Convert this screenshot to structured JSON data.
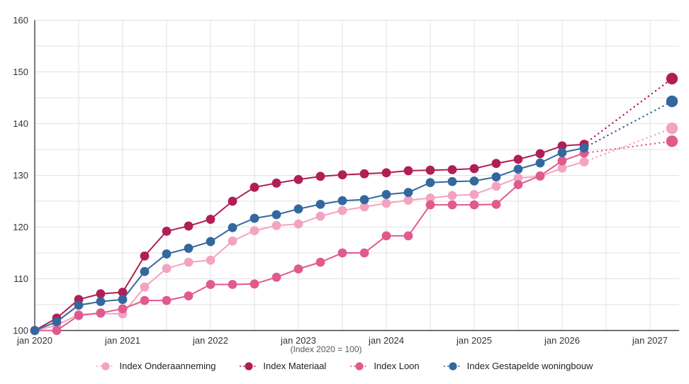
{
  "chart_data": {
    "type": "line",
    "title": "",
    "note": "(Index 2020 = 100)",
    "x_axis": {
      "tick_labels": [
        "jan 2020",
        "jan 2021",
        "jan 2022",
        "jan 2023",
        "jan 2024",
        "jan 2025",
        "jan 2026",
        "jan 2027"
      ],
      "points_per_year": 4,
      "quarters_total": 29,
      "solid_points": 26,
      "grid_every_quarters": 2
    },
    "y_axis": {
      "tick_labels": [
        "100",
        "110",
        "120",
        "130",
        "140",
        "150",
        "160"
      ],
      "min": 100,
      "max": 160,
      "label_step": 10,
      "grid_step": 5
    },
    "grid": true,
    "legend_position": "bottom",
    "projection_style": "dotted",
    "series": [
      {
        "name": "Index Onderaanneming",
        "color": "#F3A3C0",
        "values": [
          100,
          101.0,
          103.1,
          103.3,
          103.2,
          108.4,
          112.0,
          113.2,
          113.6,
          117.3,
          119.3,
          120.3,
          120.6,
          122.1,
          123.2,
          123.9,
          124.6,
          125.2,
          125.6,
          126.1,
          126.3,
          127.9,
          129.5,
          129.8,
          131.4,
          132.6
        ],
        "projection_end_value": 139.1
      },
      {
        "name": "Index Materiaal",
        "color": "#B01E56",
        "values": [
          100,
          102.4,
          106.0,
          107.1,
          107.4,
          114.4,
          119.2,
          120.2,
          121.5,
          125.0,
          127.7,
          128.5,
          129.2,
          129.8,
          130.1,
          130.3,
          130.5,
          130.9,
          131.0,
          131.1,
          131.3,
          132.3,
          133.1,
          134.2,
          135.7,
          136.0
        ],
        "projection_end_value": 148.7
      },
      {
        "name": "Index Loon",
        "color": "#E05A8E",
        "values": [
          100,
          100.0,
          102.9,
          103.4,
          104.2,
          105.8,
          105.8,
          106.7,
          108.9,
          108.9,
          109.0,
          110.3,
          111.9,
          113.2,
          115.0,
          115.0,
          118.3,
          118.3,
          124.3,
          124.3,
          124.3,
          124.4,
          128.2,
          129.9,
          132.8,
          134.3
        ],
        "projection_end_value": 136.6
      },
      {
        "name": "Index Gestapelde woningbouw",
        "color": "#33689E",
        "values": [
          100,
          101.7,
          104.9,
          105.6,
          106.0,
          111.4,
          114.8,
          115.9,
          117.2,
          119.9,
          121.7,
          122.4,
          123.5,
          124.4,
          125.1,
          125.3,
          126.3,
          126.7,
          128.6,
          128.8,
          128.9,
          129.7,
          131.2,
          132.4,
          134.4,
          135.3
        ],
        "projection_end_value": 144.3
      }
    ],
    "colors": {
      "grid": "#E2E2E2",
      "axis": "#424242",
      "tick_text": "#333333",
      "note_text": "#575757"
    }
  }
}
